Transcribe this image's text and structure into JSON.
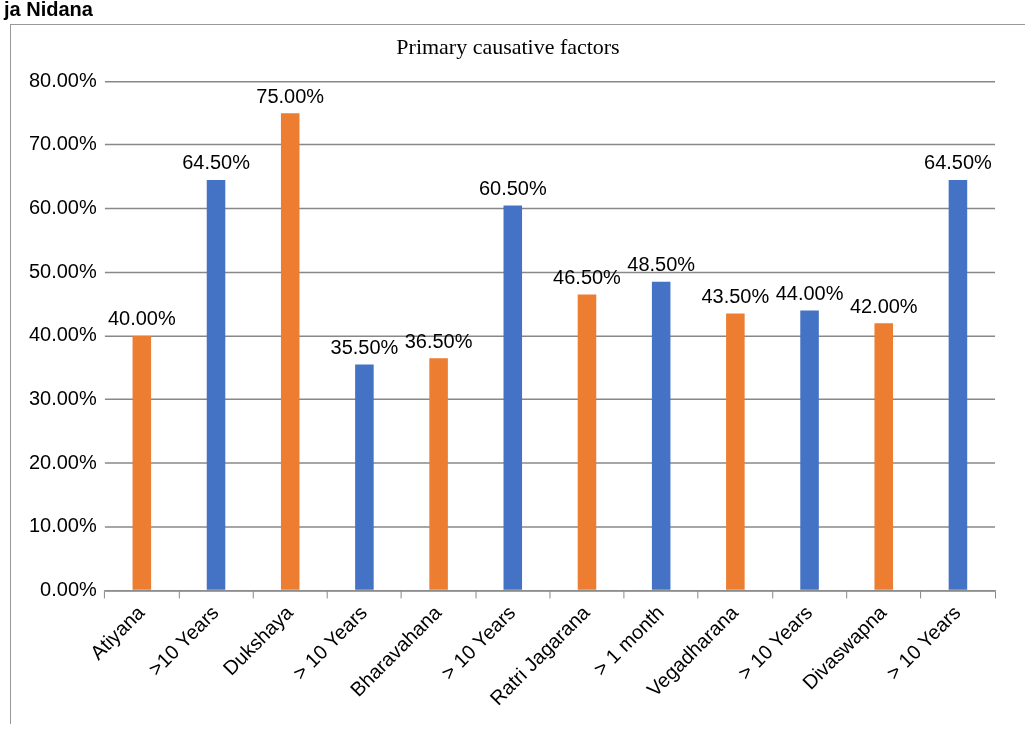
{
  "chart_data": {
    "type": "bar",
    "title": "Primary causative factors",
    "annotations": [
      "ja Nidana"
    ],
    "categories": [
      "Atiyana",
      ">10 Years",
      "Dukshaya",
      "> 10 Years",
      "Bharavahana",
      "> 10 Years",
      "Ratri Jagarana",
      "> 1 month",
      "Vegadharana",
      "> 10 Years",
      "Divaswapna",
      "> 10 Years"
    ],
    "values": [
      40,
      64.5,
      75,
      35.5,
      36.5,
      60.5,
      46.5,
      48.5,
      43.5,
      44,
      42,
      64.5
    ],
    "value_labels": [
      "40.00%",
      "64.50%",
      "75.00%",
      "35.50%",
      "36.50%",
      "60.50%",
      "46.50%",
      "48.50%",
      "43.50%",
      "44.00%",
      "42.00%",
      "64.50%"
    ],
    "colors": [
      "#ed7d31",
      "#4472c4",
      "#ed7d31",
      "#4472c4",
      "#ed7d31",
      "#4472c4",
      "#ed7d31",
      "#4472c4",
      "#ed7d31",
      "#4472c4",
      "#ed7d31",
      "#4472c4"
    ],
    "ylim": [
      0,
      80
    ],
    "yticks": [
      {
        "value": 0,
        "label": "0.00%"
      },
      {
        "value": 10,
        "label": "10.00%"
      },
      {
        "value": 20,
        "label": "20.00%"
      },
      {
        "value": 30,
        "label": "30.00%"
      },
      {
        "value": 40,
        "label": "40.00%"
      },
      {
        "value": 50,
        "label": "50.00%"
      },
      {
        "value": 60,
        "label": "60.00%"
      },
      {
        "value": 70,
        "label": "70.00%"
      },
      {
        "value": 80,
        "label": "80.00%"
      }
    ],
    "grid": "y",
    "legend": false
  }
}
